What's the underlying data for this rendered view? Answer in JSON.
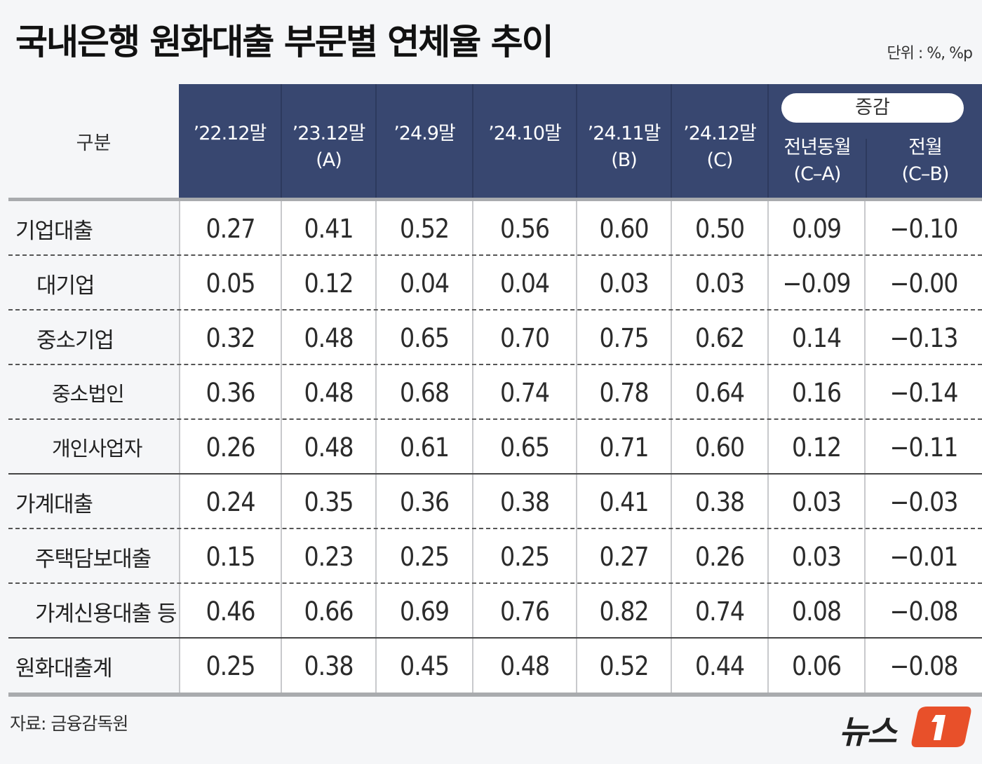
{
  "title": "국내은행 원화대출 부문별 연체율 추이",
  "unit": "단위 : %, %p",
  "header": {
    "label": "구분",
    "columns": [
      {
        "line1": "’22.12말",
        "line2": ""
      },
      {
        "line1": "’23.12말",
        "line2": "(A)"
      },
      {
        "line1": "’24.9말",
        "line2": ""
      },
      {
        "line1": "’24.10말",
        "line2": ""
      },
      {
        "line1": "’24.11말",
        "line2": "(B)"
      },
      {
        "line1": "’24.12말",
        "line2": "(C)"
      }
    ],
    "group": {
      "label": "증감",
      "sub": [
        {
          "line1": "전년동월",
          "line2": "(C–A)"
        },
        {
          "line1": "전월",
          "line2": "(C–B)"
        }
      ]
    }
  },
  "rows": [
    {
      "label": "기업대출",
      "values": [
        "0.27",
        "0.41",
        "0.52",
        "0.56",
        "0.60",
        "0.50",
        "0.09",
        "−0.10"
      ]
    },
    {
      "label": "대기업",
      "values": [
        "0.05",
        "0.12",
        "0.04",
        "0.04",
        "0.03",
        "0.03",
        "−0.09",
        "−0.00"
      ]
    },
    {
      "label": "중소기업",
      "values": [
        "0.32",
        "0.48",
        "0.65",
        "0.70",
        "0.75",
        "0.62",
        "0.14",
        "−0.13"
      ]
    },
    {
      "label": "중소법인",
      "values": [
        "0.36",
        "0.48",
        "0.68",
        "0.74",
        "0.78",
        "0.64",
        "0.16",
        "−0.14"
      ]
    },
    {
      "label": "개인사업자",
      "values": [
        "0.26",
        "0.48",
        "0.61",
        "0.65",
        "0.71",
        "0.60",
        "0.12",
        "−0.11"
      ]
    },
    {
      "label": "가계대출",
      "values": [
        "0.24",
        "0.35",
        "0.36",
        "0.38",
        "0.41",
        "0.38",
        "0.03",
        "−0.03"
      ]
    },
    {
      "label": "주택담보대출",
      "values": [
        "0.15",
        "0.23",
        "0.25",
        "0.25",
        "0.27",
        "0.26",
        "0.03",
        "−0.01"
      ]
    },
    {
      "label": "가계신용대출 등",
      "values": [
        "0.46",
        "0.66",
        "0.69",
        "0.76",
        "0.82",
        "0.74",
        "0.08",
        "−0.08"
      ]
    },
    {
      "label": "원화대출계",
      "values": [
        "0.25",
        "0.38",
        "0.45",
        "0.48",
        "0.52",
        "0.44",
        "0.06",
        "−0.08"
      ]
    }
  ],
  "source": "자료: 금융감독원",
  "logo": {
    "text": "뉴스",
    "mark": "1"
  },
  "colors": {
    "header_bg": "#384770",
    "logo_accent": "#e8502a",
    "background": "#f5f6f8"
  },
  "chart_data": {
    "type": "table",
    "title": "국내은행 원화대출 부문별 연체율 추이",
    "unit": "%, %p",
    "columns": [
      "’22.12말",
      "’23.12말(A)",
      "’24.9말",
      "’24.10말",
      "’24.11말(B)",
      "’24.12말(C)",
      "증감 전년동월(C-A)",
      "증감 전월(C-B)"
    ],
    "categories": [
      "기업대출",
      "대기업",
      "중소기업",
      "중소법인",
      "개인사업자",
      "가계대출",
      "주택담보대출",
      "가계신용대출 등",
      "원화대출계"
    ],
    "series": [
      {
        "name": "’22.12말",
        "values": [
          0.27,
          0.05,
          0.32,
          0.36,
          0.26,
          0.24,
          0.15,
          0.46,
          0.25
        ]
      },
      {
        "name": "’23.12말(A)",
        "values": [
          0.41,
          0.12,
          0.48,
          0.48,
          0.48,
          0.35,
          0.23,
          0.66,
          0.38
        ]
      },
      {
        "name": "’24.9말",
        "values": [
          0.52,
          0.04,
          0.65,
          0.68,
          0.61,
          0.36,
          0.25,
          0.69,
          0.45
        ]
      },
      {
        "name": "’24.10말",
        "values": [
          0.56,
          0.04,
          0.7,
          0.74,
          0.65,
          0.38,
          0.25,
          0.76,
          0.48
        ]
      },
      {
        "name": "’24.11말(B)",
        "values": [
          0.6,
          0.03,
          0.75,
          0.78,
          0.71,
          0.41,
          0.27,
          0.82,
          0.52
        ]
      },
      {
        "name": "’24.12말(C)",
        "values": [
          0.5,
          0.03,
          0.62,
          0.64,
          0.6,
          0.38,
          0.26,
          0.74,
          0.44
        ]
      },
      {
        "name": "전년동월(C-A)",
        "values": [
          0.09,
          -0.09,
          0.14,
          0.16,
          0.12,
          0.03,
          0.03,
          0.08,
          0.06
        ]
      },
      {
        "name": "전월(C-B)",
        "values": [
          -0.1,
          -0.0,
          -0.13,
          -0.14,
          -0.11,
          -0.03,
          -0.01,
          -0.08,
          -0.08
        ]
      }
    ],
    "source": "금융감독원"
  }
}
